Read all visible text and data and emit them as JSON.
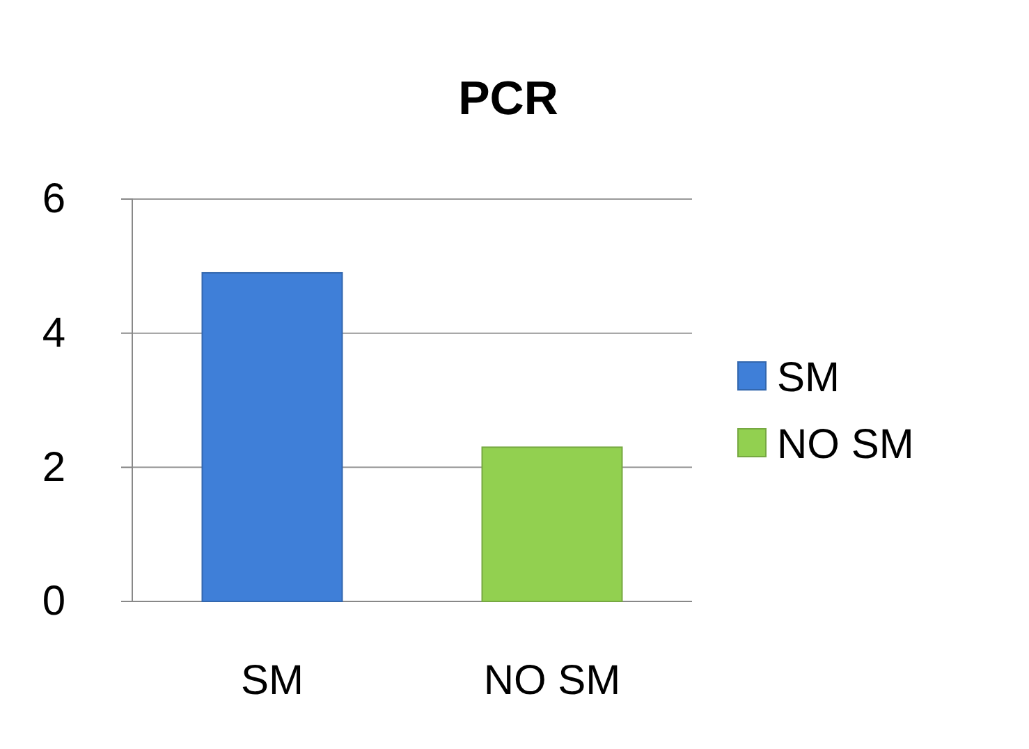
{
  "chart_data": {
    "type": "bar",
    "title": "PCR",
    "categories": [
      "SM",
      "NO SM"
    ],
    "series": [
      {
        "name": "SM",
        "color": "#3f7fd8",
        "values": [
          4.9,
          null
        ]
      },
      {
        "name": "NO SM",
        "color": "#92d050",
        "values": [
          null,
          2.3
        ]
      }
    ],
    "ylim": [
      0,
      6
    ],
    "yticks": [
      0,
      2,
      4,
      6
    ],
    "grid": "y",
    "legend": "right"
  }
}
